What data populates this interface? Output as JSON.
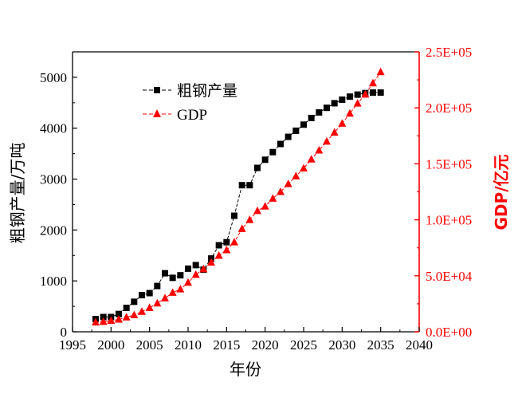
{
  "chart_data": {
    "type": "line",
    "title": "",
    "xlabel": "年份",
    "ylabel_left": "粗钢产量/万吨",
    "ylabel_right": "GDP/亿元",
    "xlim": [
      1995,
      2040
    ],
    "ylim_left": [
      0,
      5500
    ],
    "ylim_right": [
      0,
      250000
    ],
    "x_ticks": [
      "1995",
      "2000",
      "2005",
      "2010",
      "2015",
      "2020",
      "2025",
      "2030",
      "2035",
      "2040"
    ],
    "y_left_ticks": [
      "0",
      "1000",
      "2000",
      "3000",
      "4000",
      "5000"
    ],
    "y_right_ticks": [
      "0.0E+00",
      "5.0E+04",
      "1.0E+05",
      "1.5E+05",
      "2.0E+05",
      "2.5E+05"
    ],
    "grid": false,
    "legend": "top-left",
    "series": [
      {
        "name": "粗钢产量",
        "axis": "left",
        "marker": "square",
        "color": "#000000",
        "x": [
          1998,
          1999,
          2000,
          2001,
          2002,
          2003,
          2004,
          2005,
          2006,
          2007,
          2008,
          2009,
          2010,
          2011,
          2012,
          2013,
          2014,
          2015,
          2016,
          2017,
          2018,
          2019,
          2020,
          2021,
          2022,
          2023,
          2024,
          2025,
          2026,
          2027,
          2028,
          2029,
          2030,
          2031,
          2032,
          2033,
          2034,
          2035
        ],
        "values": [
          250,
          290,
          290,
          350,
          470,
          590,
          720,
          760,
          900,
          1150,
          1060,
          1110,
          1240,
          1310,
          1220,
          1440,
          1700,
          1760,
          2280,
          2880,
          2880,
          3220,
          3380,
          3530,
          3690,
          3830,
          3950,
          4070,
          4200,
          4310,
          4400,
          4490,
          4560,
          4620,
          4660,
          4690,
          4700,
          4700
        ]
      },
      {
        "name": "GDP",
        "axis": "right",
        "marker": "triangle",
        "color": "#ff0000",
        "x": [
          1998,
          1999,
          2000,
          2001,
          2002,
          2003,
          2004,
          2005,
          2006,
          2007,
          2008,
          2009,
          2010,
          2011,
          2012,
          2013,
          2014,
          2015,
          2016,
          2017,
          2018,
          2019,
          2020,
          2021,
          2022,
          2023,
          2024,
          2025,
          2026,
          2027,
          2028,
          2029,
          2030,
          2031,
          2032,
          2033,
          2034,
          2035
        ],
        "values": [
          8500,
          9000,
          10000,
          11000,
          13000,
          15000,
          18000,
          21500,
          25500,
          30000,
          35000,
          38000,
          44000,
          51000,
          56000,
          62000,
          68000,
          73000,
          80000,
          92000,
          100000,
          108000,
          112000,
          119000,
          125000,
          132000,
          139000,
          146000,
          154000,
          162000,
          170000,
          178000,
          186000,
          195000,
          204000,
          212000,
          222000,
          232000
        ]
      }
    ]
  }
}
